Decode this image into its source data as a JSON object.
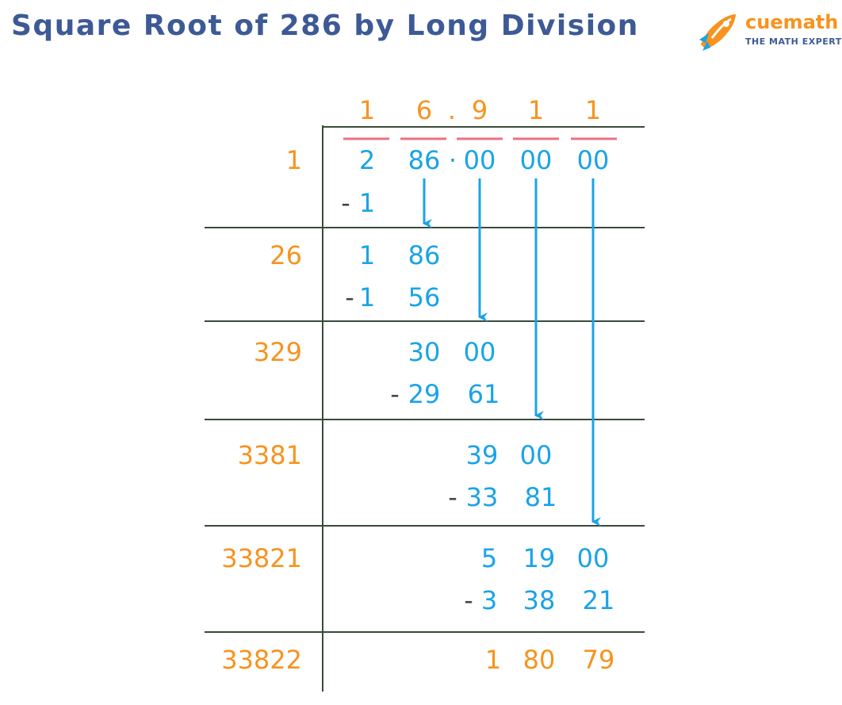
{
  "title": "Square Root of 286 by Long Division",
  "logo": {
    "name": "cuemath",
    "tagline": "THE MATH EXPERT",
    "icon": "rocket-icon"
  },
  "colors": {
    "title": "#3d5a96",
    "divisor": "#f7931e",
    "quotient": "#f7931e",
    "work": "#1aa3e8",
    "pair_bar": "#f06c84",
    "lines": "#3a4a3a"
  },
  "quotient": {
    "digits": [
      "1",
      "6",
      "9",
      "1",
      "1"
    ],
    "decimal_point": "."
  },
  "dividend": {
    "pairs": [
      "2",
      "86",
      "00",
      "00",
      "00"
    ],
    "decimal_point": "·"
  },
  "divisors": [
    "1",
    "26",
    "329",
    "3381",
    "33821",
    "33822"
  ],
  "steps": [
    {
      "subtract": "1"
    },
    {
      "remainder": [
        "1",
        "86"
      ],
      "subtract": [
        "1",
        "56"
      ]
    },
    {
      "remainder": [
        "30",
        "00"
      ],
      "subtract": [
        "29",
        "61"
      ]
    },
    {
      "remainder": [
        "39",
        "00"
      ],
      "subtract": [
        "33",
        "81"
      ]
    },
    {
      "remainder": [
        "5",
        "19",
        "00"
      ],
      "subtract": [
        "3",
        "38",
        "21"
      ]
    },
    {
      "remainder": [
        "1",
        "80",
        "79"
      ]
    }
  ],
  "minus_sign": "-"
}
